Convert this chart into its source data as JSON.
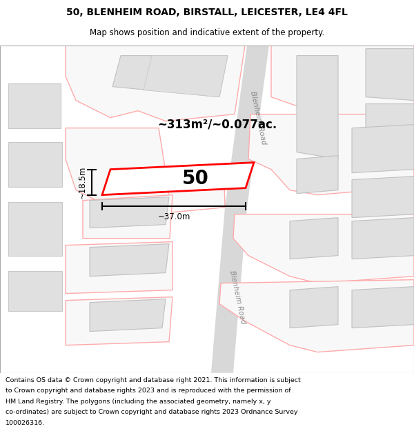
{
  "title_line1": "50, BLENHEIM ROAD, BIRSTALL, LEICESTER, LE4 4FL",
  "title_line2": "Map shows position and indicative extent of the property.",
  "footer_text": "Contains OS data © Crown copyright and database right 2021. This information is subject to Crown copyright and database rights 2023 and is reproduced with the permission of HM Land Registry. The polygons (including the associated geometry, namely x, y co-ordinates) are subject to Crown copyright and database rights 2023 Ordnance Survey 100026316.",
  "background_color": "#ffffff",
  "pink_outline": "#ffaaaa",
  "red_outline": "#ff0000",
  "annotation_area": "~313m²/~0.077ac.",
  "annotation_width": "~37.0m",
  "annotation_height": "~18.5m",
  "property_number": "50",
  "road_label_top": "Blenheim Road",
  "road_label_bottom": "Blenheim Road"
}
